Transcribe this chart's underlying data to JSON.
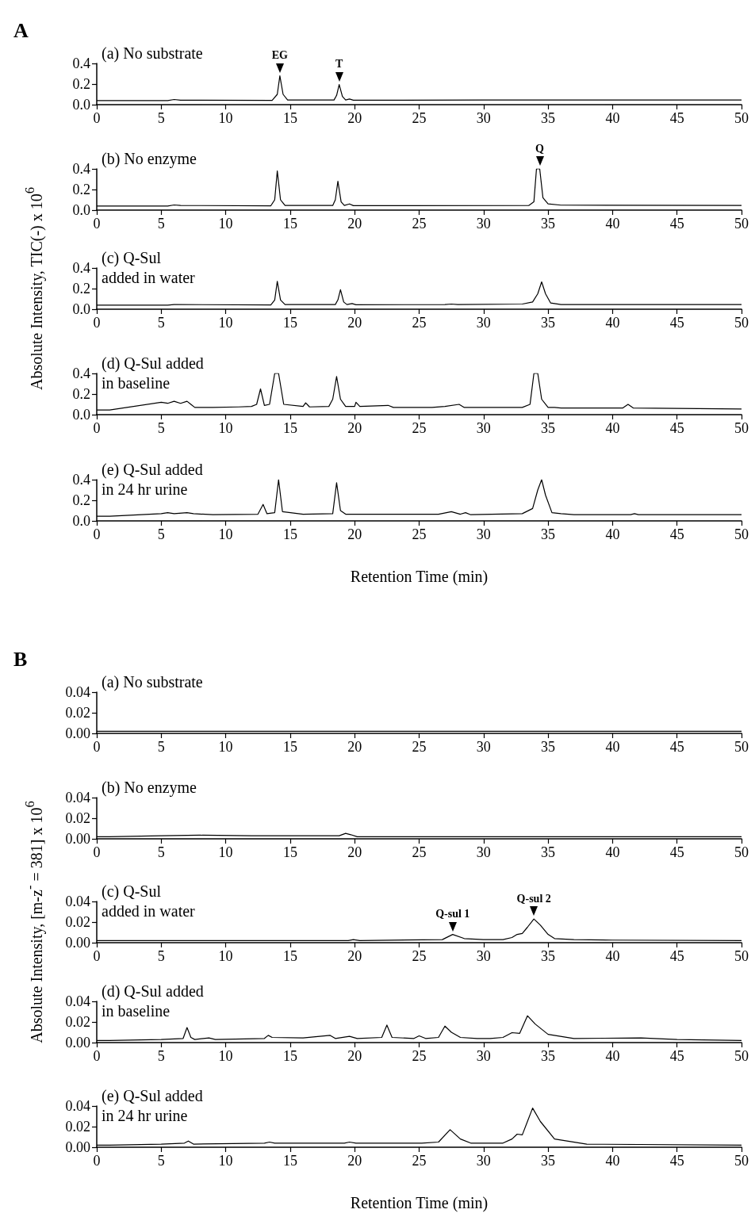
{
  "chart_data": [
    {
      "type": "line",
      "title": "A",
      "annotations": [
        "(a) No substrate",
        {
          "text": "EG",
          "x": 14.2,
          "y": 0.28
        },
        {
          "text": "T",
          "x": 18.8,
          "y": 0.195
        }
      ],
      "xlim": [
        0,
        50
      ],
      "xticks": [
        0,
        5,
        10,
        15,
        20,
        25,
        30,
        35,
        40,
        45,
        50
      ],
      "ylim": [
        0,
        0.4
      ],
      "yticks": [
        {
          "value": 0,
          "label": "0.0"
        },
        {
          "value": 0.2,
          "label": "0.2"
        },
        {
          "value": 0.4,
          "label": "0.4"
        }
      ],
      "color": "#000000",
      "x": [
        0,
        1,
        5.5,
        6,
        6.5,
        13.6,
        14.0,
        14.2,
        14.45,
        14.8,
        18.4,
        18.6,
        18.8,
        19.05,
        19.3,
        19.6,
        19.9,
        30,
        34.5,
        50
      ],
      "values": [
        0.04,
        0.04,
        0.04,
        0.05,
        0.043,
        0.042,
        0.1,
        0.28,
        0.1,
        0.045,
        0.045,
        0.09,
        0.195,
        0.08,
        0.045,
        0.055,
        0.043,
        0.045,
        0.045,
        0.045
      ]
    },
    {
      "type": "line",
      "annotations": [
        "(b) No enzyme",
        {
          "text": "Q",
          "x": 34.35,
          "y": 0.4
        }
      ],
      "xlim": [
        0,
        50
      ],
      "xticks": [
        0,
        5,
        10,
        15,
        20,
        25,
        30,
        35,
        40,
        45,
        50
      ],
      "ylim": [
        0,
        0.4
      ],
      "yticks": [
        {
          "value": 0,
          "label": "0.0"
        },
        {
          "value": 0.2,
          "label": "0.2"
        },
        {
          "value": 0.4,
          "label": "0.4"
        }
      ],
      "color": "#000000",
      "x": [
        0,
        1,
        5.5,
        6,
        6.5,
        13.5,
        13.8,
        14.0,
        14.25,
        14.6,
        18.3,
        18.5,
        18.7,
        18.95,
        19.2,
        19.6,
        19.9,
        33.5,
        33.9,
        34.1,
        34.35,
        34.6,
        35,
        36,
        50
      ],
      "values": [
        0.04,
        0.04,
        0.04,
        0.05,
        0.045,
        0.042,
        0.1,
        0.38,
        0.1,
        0.045,
        0.045,
        0.1,
        0.28,
        0.08,
        0.045,
        0.06,
        0.043,
        0.045,
        0.08,
        0.4,
        0.4,
        0.12,
        0.06,
        0.048,
        0.045
      ]
    },
    {
      "type": "line",
      "ylabel": "Absolute Intensity, TIC(-) x 10$^{6}$",
      "annotations": [
        "(c) Q-Sul\nadded in water"
      ],
      "xlim": [
        0,
        50
      ],
      "xticks": [
        0,
        5,
        10,
        15,
        20,
        25,
        30,
        35,
        40,
        45,
        50
      ],
      "ylim": [
        0,
        0.4
      ],
      "yticks": [
        {
          "value": 0,
          "label": "0.0"
        },
        {
          "value": 0.2,
          "label": "0.2"
        },
        {
          "value": 0.4,
          "label": "0.4"
        }
      ],
      "color": "#000000",
      "x": [
        0,
        1,
        5.5,
        6,
        13.5,
        13.8,
        14.0,
        14.25,
        14.6,
        18.5,
        18.7,
        18.9,
        19.15,
        19.4,
        19.8,
        20.1,
        27,
        27.5,
        28,
        33,
        33.8,
        34.2,
        34.5,
        34.8,
        35.2,
        36,
        50
      ],
      "values": [
        0.04,
        0.04,
        0.04,
        0.045,
        0.042,
        0.09,
        0.27,
        0.09,
        0.045,
        0.045,
        0.09,
        0.19,
        0.07,
        0.045,
        0.055,
        0.043,
        0.045,
        0.05,
        0.045,
        0.05,
        0.07,
        0.15,
        0.265,
        0.15,
        0.06,
        0.045,
        0.045
      ]
    },
    {
      "type": "line",
      "annotations": [
        "(d) Q-Sul added\nin baseline"
      ],
      "xlim": [
        0,
        50
      ],
      "xticks": [
        0,
        5,
        10,
        15,
        20,
        25,
        30,
        35,
        40,
        45,
        50
      ],
      "ylim": [
        0,
        0.4
      ],
      "yticks": [
        {
          "value": 0,
          "label": "0.0"
        },
        {
          "value": 0.2,
          "label": "0.2"
        },
        {
          "value": 0.4,
          "label": "0.4"
        }
      ],
      "color": "#000000",
      "x": [
        0,
        1,
        5,
        5.5,
        6,
        6.5,
        7,
        7.3,
        7.6,
        9,
        11,
        12,
        12.4,
        12.7,
        13,
        13.4,
        13.8,
        14.1,
        14.5,
        16,
        16.2,
        16.5,
        18,
        18.3,
        18.6,
        18.9,
        19.3,
        20,
        20.1,
        20.4,
        22.6,
        23,
        26,
        27,
        28.1,
        28.5,
        33,
        33.6,
        33.9,
        34.2,
        34.5,
        35,
        35.5,
        36,
        40.8,
        41.2,
        41.6,
        45,
        50
      ],
      "values": [
        0.045,
        0.045,
        0.12,
        0.11,
        0.13,
        0.11,
        0.13,
        0.1,
        0.07,
        0.07,
        0.075,
        0.08,
        0.1,
        0.25,
        0.09,
        0.1,
        0.4,
        0.4,
        0.1,
        0.08,
        0.115,
        0.075,
        0.08,
        0.15,
        0.37,
        0.15,
        0.08,
        0.08,
        0.12,
        0.08,
        0.09,
        0.07,
        0.07,
        0.08,
        0.1,
        0.07,
        0.07,
        0.1,
        0.4,
        0.4,
        0.15,
        0.07,
        0.07,
        0.065,
        0.065,
        0.1,
        0.065,
        0.06,
        0.055
      ]
    },
    {
      "type": "line",
      "xlabel": "Retention Time (min)",
      "annotations": [
        "(e) Q-Sul added\nin 24 hr urine"
      ],
      "xlim": [
        0,
        50
      ],
      "xticks": [
        0,
        5,
        10,
        15,
        20,
        25,
        30,
        35,
        40,
        45,
        50
      ],
      "ylim": [
        0,
        0.4
      ],
      "yticks": [
        {
          "value": 0,
          "label": "0.0"
        },
        {
          "value": 0.2,
          "label": "0.2"
        },
        {
          "value": 0.4,
          "label": "0.4"
        }
      ],
      "color": "#000000",
      "x": [
        0,
        1,
        5,
        5.5,
        6,
        7,
        7.5,
        9,
        12.5,
        12.9,
        13.2,
        13.8,
        14.1,
        14.4,
        16,
        18.3,
        18.6,
        18.9,
        19.3,
        21,
        26.5,
        27.5,
        28.2,
        28.6,
        29,
        33,
        33.8,
        34.2,
        34.5,
        34.8,
        35.3,
        36,
        37,
        41.4,
        41.7,
        42,
        50
      ],
      "values": [
        0.045,
        0.045,
        0.07,
        0.08,
        0.07,
        0.08,
        0.07,
        0.06,
        0.065,
        0.16,
        0.07,
        0.08,
        0.4,
        0.09,
        0.065,
        0.07,
        0.37,
        0.1,
        0.065,
        0.065,
        0.065,
        0.09,
        0.065,
        0.08,
        0.06,
        0.07,
        0.12,
        0.3,
        0.4,
        0.25,
        0.08,
        0.07,
        0.06,
        0.06,
        0.07,
        0.06,
        0.06
      ]
    },
    {
      "type": "line",
      "title": "B",
      "annotations": [
        "(a) No substrate"
      ],
      "xlim": [
        0,
        50
      ],
      "xticks": [
        0,
        5,
        10,
        15,
        20,
        25,
        30,
        35,
        40,
        45,
        50
      ],
      "ylim": [
        0,
        0.04
      ],
      "yticks": [
        {
          "value": 0,
          "label": "0.00"
        },
        {
          "value": 0.02,
          "label": "0.02"
        },
        {
          "value": 0.04,
          "label": "0.04"
        }
      ],
      "color": "#000000",
      "x": [
        0,
        1,
        5,
        20,
        35,
        50
      ],
      "values": [
        0.002,
        0.002,
        0.002,
        0.002,
        0.002,
        0.002
      ]
    },
    {
      "type": "line",
      "annotations": [
        "(b) No enzyme"
      ],
      "xlim": [
        0,
        50
      ],
      "xticks": [
        0,
        5,
        10,
        15,
        20,
        25,
        30,
        35,
        40,
        45,
        50
      ],
      "ylim": [
        0,
        0.04
      ],
      "yticks": [
        {
          "value": 0,
          "label": "0.00"
        },
        {
          "value": 0.02,
          "label": "0.02"
        },
        {
          "value": 0.04,
          "label": "0.04"
        }
      ],
      "color": "#000000",
      "x": [
        0,
        1,
        5,
        8,
        12,
        18.8,
        19.3,
        19.7,
        20.2,
        25,
        50
      ],
      "values": [
        0.002,
        0.002,
        0.003,
        0.0035,
        0.003,
        0.003,
        0.0053,
        0.004,
        0.002,
        0.002,
        0.002
      ]
    },
    {
      "type": "line",
      "ylabel": "Absolute Intensity, [m-z$^{-}$ = 381] x 10$^{6}$",
      "annotations": [
        "(c) Q-Sul\nadded in water",
        {
          "text": "Q-sul 1",
          "x": 27.6,
          "y": 0.008
        },
        {
          "text": "Q-sul 2",
          "x": 33.9,
          "y": 0.023
        }
      ],
      "xlim": [
        0,
        50
      ],
      "xticks": [
        0,
        5,
        10,
        15,
        20,
        25,
        30,
        35,
        40,
        45,
        50
      ],
      "ylim": [
        0,
        0.04
      ],
      "yticks": [
        {
          "value": 0,
          "label": "0.00"
        },
        {
          "value": 0.02,
          "label": "0.02"
        },
        {
          "value": 0.04,
          "label": "0.04"
        }
      ],
      "color": "#000000",
      "x": [
        0,
        1,
        5,
        19.5,
        19.9,
        20.4,
        26.8,
        27.6,
        28.5,
        30,
        31.5,
        32.2,
        32.6,
        33.0,
        33.4,
        33.9,
        34.4,
        35,
        35.5,
        37,
        40,
        50
      ],
      "values": [
        0.002,
        0.002,
        0.002,
        0.002,
        0.003,
        0.002,
        0.003,
        0.008,
        0.004,
        0.003,
        0.003,
        0.005,
        0.008,
        0.009,
        0.015,
        0.023,
        0.017,
        0.008,
        0.004,
        0.003,
        0.0025,
        0.002
      ]
    },
    {
      "type": "line",
      "annotations": [
        "(d) Q-Sul added\nin baseline"
      ],
      "xlim": [
        0,
        50
      ],
      "xticks": [
        0,
        5,
        10,
        15,
        20,
        25,
        30,
        35,
        40,
        45,
        50
      ],
      "ylim": [
        0,
        0.04
      ],
      "yticks": [
        {
          "value": 0,
          "label": "0.00"
        },
        {
          "value": 0.02,
          "label": "0.02"
        },
        {
          "value": 0.04,
          "label": "0.04"
        }
      ],
      "color": "#000000",
      "x": [
        0,
        1,
        5,
        6.7,
        7.0,
        7.3,
        7.6,
        8.7,
        9.2,
        13,
        13.3,
        13.6,
        16,
        18.1,
        18.5,
        19.6,
        20.2,
        22.1,
        22.5,
        22.9,
        24.6,
        25.0,
        25.5,
        26.5,
        27.0,
        27.5,
        28.2,
        29.5,
        30.5,
        31.5,
        32.2,
        32.8,
        33.4,
        34.0,
        35,
        37,
        42.2,
        45,
        50
      ],
      "values": [
        0.002,
        0.002,
        0.003,
        0.004,
        0.0146,
        0.005,
        0.003,
        0.0045,
        0.003,
        0.004,
        0.007,
        0.005,
        0.0045,
        0.007,
        0.004,
        0.006,
        0.004,
        0.005,
        0.017,
        0.005,
        0.004,
        0.0065,
        0.004,
        0.005,
        0.016,
        0.01,
        0.005,
        0.004,
        0.004,
        0.005,
        0.0096,
        0.009,
        0.026,
        0.018,
        0.008,
        0.004,
        0.0045,
        0.003,
        0.002
      ]
    },
    {
      "type": "line",
      "xlabel": "Retention Time (min)",
      "annotations": [
        "(e) Q-Sul added\nin 24 hr urine"
      ],
      "xlim": [
        0,
        50
      ],
      "xticks": [
        0,
        5,
        10,
        15,
        20,
        25,
        30,
        35,
        40,
        45,
        50
      ],
      "ylim": [
        0,
        0.04
      ],
      "yticks": [
        {
          "value": 0,
          "label": "0.00"
        },
        {
          "value": 0.02,
          "label": "0.02"
        },
        {
          "value": 0.04,
          "label": "0.04"
        }
      ],
      "color": "#000000",
      "x": [
        0,
        1,
        5,
        6.8,
        7.1,
        7.5,
        13,
        13.4,
        13.8,
        19.2,
        19.6,
        20.1,
        25.2,
        26.5,
        27.4,
        28.2,
        29,
        31.5,
        32.2,
        32.6,
        33.0,
        33.4,
        33.8,
        34.4,
        35.5,
        38,
        50
      ],
      "values": [
        0.002,
        0.002,
        0.003,
        0.004,
        0.006,
        0.003,
        0.004,
        0.005,
        0.004,
        0.004,
        0.005,
        0.004,
        0.004,
        0.005,
        0.017,
        0.008,
        0.004,
        0.004,
        0.008,
        0.0127,
        0.012,
        0.025,
        0.038,
        0.025,
        0.008,
        0.003,
        0.002
      ]
    }
  ]
}
